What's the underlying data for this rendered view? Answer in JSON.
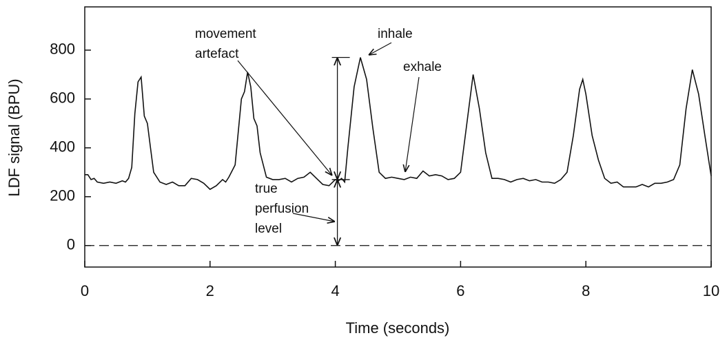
{
  "chart_data": {
    "type": "line",
    "x_label": "Time (seconds)",
    "y_label": "LDF signal (BPU)",
    "xlim": [
      0,
      10
    ],
    "ylim": [
      -88,
      977
    ],
    "xticks": [
      0,
      2,
      4,
      6,
      8,
      10
    ],
    "yticks": [
      0,
      200,
      400,
      600,
      800
    ],
    "grid": false,
    "reference_line": 0,
    "series": [
      {
        "color": "#111111",
        "x": [
          0,
          0.05,
          0.1,
          0.15,
          0.2,
          0.3,
          0.4,
          0.5,
          0.6,
          0.65,
          0.7,
          0.75,
          0.8,
          0.85,
          0.9,
          0.95,
          1.0,
          1.05,
          1.1,
          1.2,
          1.3,
          1.4,
          1.5,
          1.6,
          1.7,
          1.8,
          1.9,
          2.0,
          2.1,
          2.2,
          2.25,
          2.3,
          2.4,
          2.5,
          2.55,
          2.6,
          2.65,
          2.7,
          2.75,
          2.8,
          2.9,
          3.0,
          3.1,
          3.2,
          3.3,
          3.4,
          3.5,
          3.6,
          3.7,
          3.8,
          3.9,
          4.0,
          4.05,
          4.1,
          4.15,
          4.2,
          4.3,
          4.4,
          4.5,
          4.6,
          4.7,
          4.8,
          4.9,
          5.0,
          5.1,
          5.2,
          5.3,
          5.4,
          5.5,
          5.6,
          5.7,
          5.8,
          5.9,
          6.0,
          6.1,
          6.2,
          6.3,
          6.4,
          6.5,
          6.6,
          6.7,
          6.8,
          6.9,
          7.0,
          7.1,
          7.2,
          7.3,
          7.4,
          7.5,
          7.6,
          7.7,
          7.8,
          7.9,
          7.95,
          8.0,
          8.1,
          8.2,
          8.3,
          8.4,
          8.5,
          8.6,
          8.7,
          8.8,
          8.9,
          9.0,
          9.1,
          9.2,
          9.3,
          9.4,
          9.5,
          9.6,
          9.7,
          9.8,
          9.9,
          10.0
        ],
        "values": [
          290,
          290,
          270,
          275,
          260,
          255,
          260,
          255,
          265,
          260,
          275,
          320,
          540,
          670,
          690,
          530,
          500,
          400,
          300,
          260,
          250,
          260,
          245,
          245,
          275,
          270,
          255,
          230,
          245,
          270,
          260,
          280,
          330,
          600,
          630,
          710,
          650,
          520,
          490,
          380,
          280,
          270,
          270,
          275,
          260,
          275,
          280,
          300,
          275,
          250,
          245,
          270,
          265,
          275,
          260,
          400,
          650,
          770,
          680,
          480,
          300,
          275,
          280,
          275,
          270,
          280,
          275,
          305,
          285,
          290,
          285,
          270,
          275,
          300,
          500,
          700,
          560,
          380,
          275,
          275,
          270,
          260,
          270,
          275,
          265,
          270,
          260,
          260,
          255,
          270,
          300,
          450,
          640,
          680,
          620,
          450,
          350,
          275,
          255,
          260,
          240,
          240,
          240,
          250,
          240,
          255,
          255,
          260,
          270,
          330,
          560,
          720,
          620,
          450,
          285
        ]
      }
    ],
    "range_arrows": [
      {
        "x": 4,
        "from": 270,
        "to": 770
      },
      {
        "x": 4,
        "from": 0,
        "to": 270
      }
    ],
    "annotations": [
      {
        "lines": [
          "movement",
          "artefact"
        ]
      },
      {
        "lines": [
          "inhale"
        ]
      },
      {
        "lines": [
          "exhale"
        ]
      },
      {
        "lines": [
          "true",
          "perfusion",
          "level"
        ]
      }
    ]
  }
}
